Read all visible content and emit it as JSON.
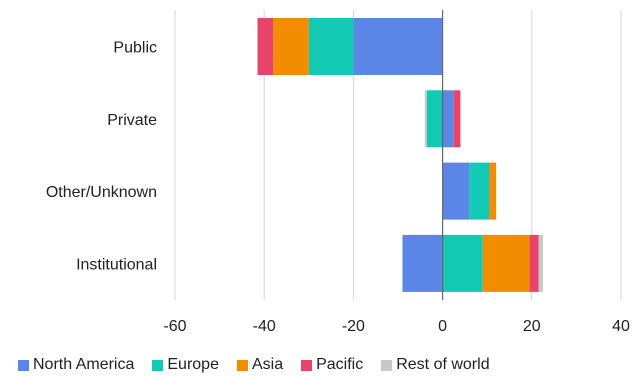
{
  "chart_data": {
    "type": "bar",
    "orientation": "horizontal",
    "stacked": true,
    "categories": [
      "Public",
      "Private",
      "Other/Unknown",
      "Institutional"
    ],
    "series": [
      {
        "name": "North America",
        "color": "#5b86e5",
        "values": [
          -20,
          2.5,
          6,
          -9
        ]
      },
      {
        "name": "Europe",
        "color": "#12c9b4",
        "values": [
          -10,
          -3.5,
          4.5,
          9
        ]
      },
      {
        "name": "Asia",
        "color": "#f28c00",
        "values": [
          -8,
          0,
          1.5,
          10.5
        ]
      },
      {
        "name": "Pacific",
        "color": "#e8436a",
        "values": [
          -3.5,
          1.5,
          0,
          2
        ]
      },
      {
        "name": "Rest of world",
        "color": "#c8c8c8",
        "values": [
          0,
          -0.5,
          0,
          1
        ]
      }
    ],
    "x_ticks": [
      -60,
      -40,
      -20,
      0,
      20,
      40
    ],
    "xlim": [
      -60,
      40
    ],
    "grid": true,
    "legend_position": "bottom",
    "title": "",
    "xlabel": "",
    "ylabel": ""
  }
}
